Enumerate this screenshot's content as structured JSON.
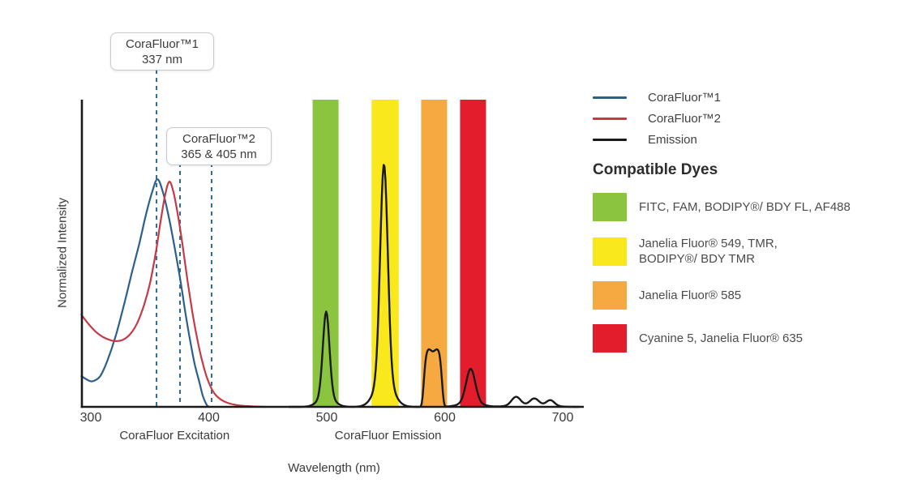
{
  "figure": {
    "y_axis_label": "Normalized Intensity",
    "x_axis_label": "Wavelength (nm)",
    "axis_group_labels": [
      {
        "label": "CoraFluor Excitation",
        "center_nm": 371
      },
      {
        "label": "CoraFluor Emission",
        "center_nm": 552
      }
    ]
  },
  "annotations": [
    {
      "line1": "CoraFluor™1",
      "line2": "337 nm",
      "marker_lines_nm": [
        355.7
      ]
    },
    {
      "line1": "CoraFluor™2",
      "line2": "365 & 405 nm",
      "marker_lines_nm": [
        375.6,
        402.4
      ]
    }
  ],
  "legend": {
    "items": [
      {
        "label": "CoraFluor™1",
        "color": "#2b5f8c"
      },
      {
        "label": "CoraFluor™2",
        "color": "#c43a46"
      },
      {
        "label": "Emission",
        "color": "#1a1a1a"
      }
    ]
  },
  "dyes": {
    "heading": "Compatible Dyes",
    "items": [
      {
        "line1": "FITC, FAM, BODIPY®/ BDY FL, AF488",
        "line2": "",
        "color": "#8bc53f"
      },
      {
        "line1": "Janelia Fluor® 549, TMR,",
        "line2": "BODIPY®/ BDY TMR",
        "color": "#f8e81c"
      },
      {
        "line1": "Janelia Fluor® 585",
        "line2": "",
        "color": "#f7a941"
      },
      {
        "line1": "Cyanine 5, Janelia Fluor® 635",
        "line2": "",
        "color": "#e41d2d"
      }
    ]
  },
  "chart_data": {
    "type": "line",
    "title": "",
    "xlabel": "Wavelength (nm)",
    "ylabel": "Normalized Intensity",
    "xlim": [
      292,
      718
    ],
    "ylim": [
      0,
      1
    ],
    "x_ticks": [
      300,
      400,
      500,
      600,
      700
    ],
    "grid": "off",
    "legend_position": "top-right",
    "marker_line_color": "#2f6c94",
    "bands": [
      {
        "name": "FITC/FAM/BODIPY FL/AF488 window",
        "from_nm": 488,
        "to_nm": 510,
        "color": "#8bc53f"
      },
      {
        "name": "JF549/TMR/BODIPY TMR window",
        "from_nm": 538,
        "to_nm": 561,
        "color": "#f8e81c"
      },
      {
        "name": "JF585 window",
        "from_nm": 580,
        "to_nm": 602,
        "color": "#f7a941"
      },
      {
        "name": "Cy5/JF635 window",
        "from_nm": 613,
        "to_nm": 635,
        "color": "#e41d2d"
      }
    ],
    "series": [
      {
        "name": "CoraFluor™1",
        "kind": "excitation",
        "color": "#2b5f8c",
        "points": [
          [
            292,
            0.1
          ],
          [
            298,
            0.086
          ],
          [
            302,
            0.084
          ],
          [
            308,
            0.1
          ],
          [
            314,
            0.15
          ],
          [
            321,
            0.23
          ],
          [
            328,
            0.33
          ],
          [
            335,
            0.44
          ],
          [
            341,
            0.53
          ],
          [
            347,
            0.63
          ],
          [
            352,
            0.7
          ],
          [
            356.5,
            0.741
          ],
          [
            361,
            0.7
          ],
          [
            366,
            0.62
          ],
          [
            371,
            0.52
          ],
          [
            376,
            0.41
          ],
          [
            380,
            0.31
          ],
          [
            384,
            0.22
          ],
          [
            388,
            0.14
          ],
          [
            392,
            0.08
          ],
          [
            395,
            0.035
          ],
          [
            398,
            0.008
          ],
          [
            400,
            0
          ]
        ]
      },
      {
        "name": "CoraFluor™2",
        "kind": "excitation",
        "color": "#c43a46",
        "points": [
          [
            292,
            0.3
          ],
          [
            298,
            0.27
          ],
          [
            304,
            0.245
          ],
          [
            310,
            0.228
          ],
          [
            316,
            0.218
          ],
          [
            321,
            0.214
          ],
          [
            327,
            0.218
          ],
          [
            333,
            0.235
          ],
          [
            339,
            0.27
          ],
          [
            345,
            0.33
          ],
          [
            350,
            0.4
          ],
          [
            355,
            0.5
          ],
          [
            359,
            0.6
          ],
          [
            363,
            0.69
          ],
          [
            366.5,
            0.733
          ],
          [
            370,
            0.7
          ],
          [
            374,
            0.62
          ],
          [
            378,
            0.52
          ],
          [
            382,
            0.41
          ],
          [
            386,
            0.31
          ],
          [
            390,
            0.225
          ],
          [
            394,
            0.155
          ],
          [
            398,
            0.1
          ],
          [
            402,
            0.062
          ],
          [
            406,
            0.038
          ],
          [
            411,
            0.022
          ],
          [
            416,
            0.013
          ],
          [
            422,
            0.007
          ],
          [
            430,
            0.003
          ],
          [
            440,
            0.001
          ],
          [
            448,
            0
          ]
        ]
      },
      {
        "name": "Emission",
        "kind": "emission",
        "color": "#1a1a1a",
        "peaks": [
          {
            "center_nm": 499.5,
            "height": 0.31,
            "fwhm_nm": 6.5,
            "shape": "gaussian"
          },
          {
            "center_nm": 548.5,
            "height": 0.79,
            "fwhm_nm": 7.5,
            "shape": "gaussian"
          },
          {
            "center_nm": 590.0,
            "height": 0.19,
            "fwhm_nm": 15.0,
            "shape": "flattop"
          },
          {
            "center_nm": 622.0,
            "height": 0.124,
            "fwhm_nm": 9.0,
            "shape": "gaussian"
          },
          {
            "center_nm": 660.5,
            "height": 0.032,
            "fwhm_nm": 9.0,
            "shape": "gaussian"
          },
          {
            "center_nm": 676.0,
            "height": 0.026,
            "fwhm_nm": 9.0,
            "shape": "gaussian"
          },
          {
            "center_nm": 689.5,
            "height": 0.021,
            "fwhm_nm": 8.0,
            "shape": "gaussian"
          }
        ]
      }
    ]
  }
}
